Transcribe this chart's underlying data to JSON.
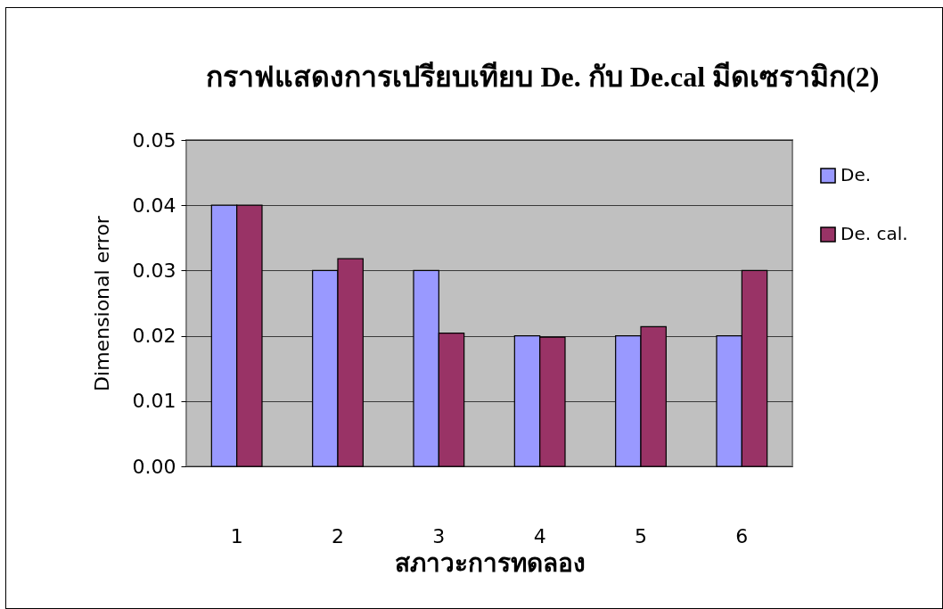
{
  "chart_data": {
    "type": "bar",
    "title": "กราฟแสดงการเปรียบเทียบ De. กับ De.cal มีดเซรามิก(2)",
    "xlabel": "สภาวะการทดลอง",
    "ylabel": "Dimensional error",
    "categories": [
      "1",
      "2",
      "3",
      "4",
      "5",
      "6"
    ],
    "series": [
      {
        "name": "De.",
        "color": "#9999ff",
        "values": [
          0.04,
          0.03,
          0.03,
          0.02,
          0.02,
          0.02
        ]
      },
      {
        "name": "De. cal.",
        "color": "#993366",
        "values": [
          0.04,
          0.0318,
          0.0204,
          0.0198,
          0.0214,
          0.03
        ]
      }
    ],
    "ylim": [
      0,
      0.05
    ],
    "yticks": [
      {
        "value": 0,
        "label": "0.00"
      },
      {
        "value": 0.01,
        "label": "0.01"
      },
      {
        "value": 0.02,
        "label": "0.02"
      },
      {
        "value": 0.03,
        "label": "0.03"
      },
      {
        "value": 0.04,
        "label": "0.04"
      },
      {
        "value": 0.05,
        "label": "0.05"
      }
    ],
    "grid": "y",
    "legend": "right"
  }
}
